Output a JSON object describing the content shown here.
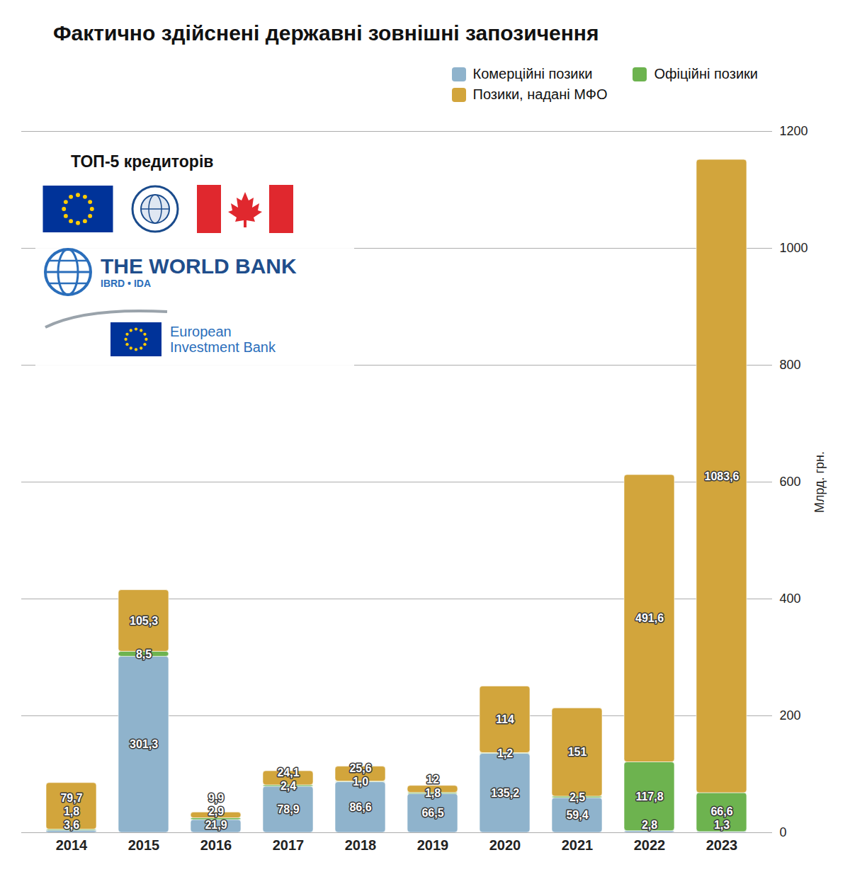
{
  "chart_data": {
    "type": "bar",
    "title": "Фактично здійснені державні зовнішні запозичення",
    "stacked": true,
    "data_labels": true,
    "grid": true,
    "legend": "top-right",
    "categories": [
      "2014",
      "2015",
      "2016",
      "2017",
      "2018",
      "2019",
      "2020",
      "2021",
      "2022",
      "2023"
    ],
    "y_label": "Млрд. грн.",
    "ylim": [
      0,
      1200
    ],
    "yticks": [
      0,
      200,
      400,
      600,
      800,
      1000,
      1200
    ],
    "series": [
      {
        "name": "Комерційні позики",
        "color": "#8fb3cc",
        "values": [
          3.6,
          301.3,
          21.9,
          78.9,
          86.6,
          66.5,
          135.2,
          59.4,
          2.8,
          1.3
        ],
        "value_labels": [
          "3,6",
          "301,3",
          "21,9",
          "78,9",
          "86,6",
          "66,5",
          "135,2",
          "59,4",
          "2,8",
          "1,3"
        ]
      },
      {
        "name": "Офіційні позики",
        "color": "#6db34f",
        "values": [
          1.8,
          8.5,
          2.9,
          2.4,
          1.0,
          1.8,
          1.2,
          2.5,
          117.8,
          66.6
        ],
        "value_labels": [
          "1,8",
          "8,5",
          "2,9",
          "2,4",
          "1,0",
          "1,8",
          "1,2",
          "2,5",
          "117,8",
          "66,6"
        ]
      },
      {
        "name": "Позики, надані МФО",
        "color": "#d2a53c",
        "values": [
          79.7,
          105.3,
          9.9,
          24.1,
          25.6,
          12,
          114,
          151,
          491.6,
          1083.6
        ],
        "value_labels": [
          "79,7",
          "105,3",
          "9,9",
          "24,1",
          "25,6",
          "12",
          "114",
          "151",
          "491,6",
          "1083,6"
        ]
      }
    ],
    "creditors_title": "ТОП-5 кредиторів",
    "logo_texts": [
      "THE WORLD BANK",
      "IBRD • IDA",
      "European Investment Bank"
    ]
  }
}
